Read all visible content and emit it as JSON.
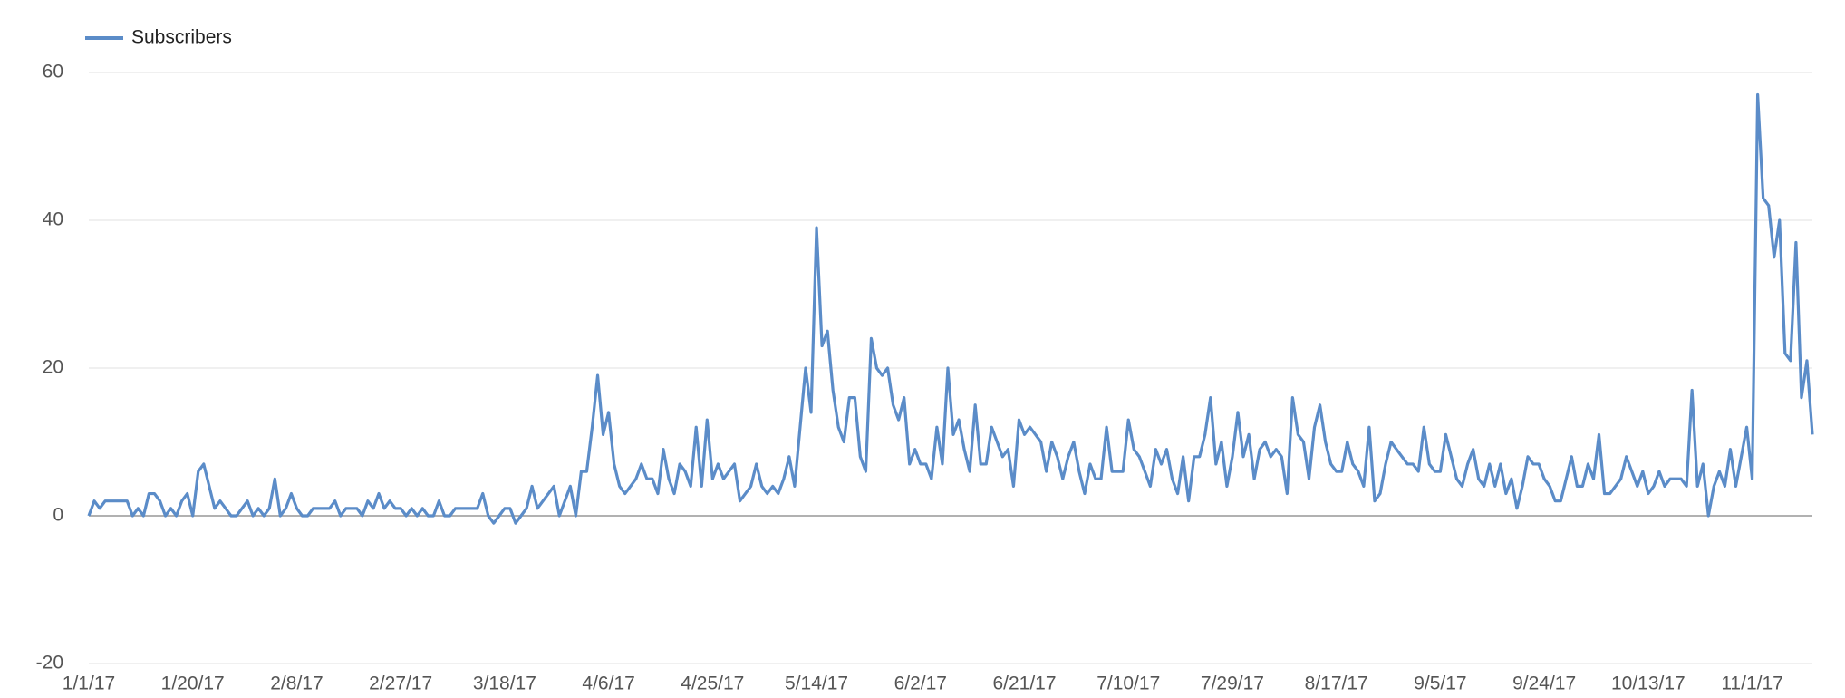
{
  "chart_data": {
    "type": "line",
    "categories": [
      "1/1/17",
      null,
      null,
      null,
      null,
      null,
      null,
      null,
      null,
      null,
      null,
      null,
      null,
      null,
      null,
      null,
      null,
      null,
      null,
      "1/20/17",
      null,
      null,
      null,
      null,
      null,
      null,
      null,
      null,
      null,
      null,
      null,
      null,
      null,
      null,
      null,
      null,
      null,
      null,
      "2/8/17",
      null,
      null,
      null,
      null,
      null,
      null,
      null,
      null,
      null,
      null,
      null,
      null,
      null,
      null,
      null,
      null,
      null,
      null,
      "2/27/17",
      null,
      null,
      null,
      null,
      null,
      null,
      null,
      null,
      null,
      null,
      null,
      null,
      null,
      null,
      null,
      null,
      null,
      null,
      "3/18/17",
      null,
      null,
      null,
      null,
      null,
      null,
      null,
      null,
      null,
      null,
      null,
      null,
      null,
      null,
      null,
      null,
      null,
      null,
      "4/6/17",
      null,
      null,
      null,
      null,
      null,
      null,
      null,
      null,
      null,
      null,
      null,
      null,
      null,
      null,
      null,
      null,
      null,
      null,
      "4/25/17",
      null,
      null,
      null,
      null,
      null,
      null,
      null,
      null,
      null,
      null,
      null,
      null,
      null,
      null,
      null,
      null,
      null,
      null,
      "5/14/17",
      null,
      null,
      null,
      null,
      null,
      null,
      null,
      null,
      null,
      null,
      null,
      null,
      null,
      null,
      null,
      null,
      null,
      null,
      "6/2/17",
      null,
      null,
      null,
      null,
      null,
      null,
      null,
      null,
      null,
      null,
      null,
      null,
      null,
      null,
      null,
      null,
      null,
      null,
      "6/21/17",
      null,
      null,
      null,
      null,
      null,
      null,
      null,
      null,
      null,
      null,
      null,
      null,
      null,
      null,
      null,
      null,
      null,
      null,
      "7/10/17",
      null,
      null,
      null,
      null,
      null,
      null,
      null,
      null,
      null,
      null,
      null,
      null,
      null,
      null,
      null,
      null,
      null,
      null,
      "7/29/17",
      null,
      null,
      null,
      null,
      null,
      null,
      null,
      null,
      null,
      null,
      null,
      null,
      null,
      null,
      null,
      null,
      null,
      null,
      "8/17/17",
      null,
      null,
      null,
      null,
      null,
      null,
      null,
      null,
      null,
      null,
      null,
      null,
      null,
      null,
      null,
      null,
      null,
      null,
      "9/5/17",
      null,
      null,
      null,
      null,
      null,
      null,
      null,
      null,
      null,
      null,
      null,
      null,
      null,
      null,
      null,
      null,
      null,
      null,
      "9/24/17",
      null,
      null,
      null,
      null,
      null,
      null,
      null,
      null,
      null,
      null,
      null,
      null,
      null,
      null,
      null,
      null,
      null,
      null,
      "10/13/17",
      null,
      null,
      null,
      null,
      null,
      null,
      null,
      null,
      null,
      null,
      null,
      null,
      null,
      null,
      null,
      null,
      null,
      null,
      "11/1/17",
      null,
      null,
      null,
      null,
      null,
      null,
      null,
      null,
      null,
      null,
      null
    ],
    "series": [
      {
        "name": "Subscribers",
        "color": "#5b8cc8",
        "values": [
          0,
          2,
          1,
          2,
          2,
          2,
          2,
          2,
          0,
          1,
          0,
          3,
          3,
          2,
          0,
          1,
          0,
          2,
          3,
          0,
          6,
          7,
          4,
          1,
          2,
          1,
          0,
          0,
          1,
          2,
          0,
          1,
          0,
          1,
          5,
          0,
          1,
          3,
          1,
          0,
          0,
          1,
          1,
          1,
          1,
          2,
          0,
          1,
          1,
          1,
          0,
          2,
          1,
          3,
          1,
          2,
          1,
          1,
          0,
          1,
          0,
          1,
          0,
          0,
          2,
          0,
          0,
          1,
          1,
          1,
          1,
          1,
          3,
          0,
          -1,
          0,
          1,
          1,
          -1,
          0,
          1,
          4,
          1,
          2,
          3,
          4,
          0,
          2,
          4,
          0,
          6,
          6,
          12,
          19,
          11,
          14,
          7,
          4,
          3,
          4,
          5,
          7,
          5,
          5,
          3,
          9,
          5,
          3,
          7,
          6,
          4,
          12,
          4,
          13,
          5,
          7,
          5,
          6,
          7,
          2,
          3,
          4,
          7,
          4,
          3,
          4,
          3,
          5,
          8,
          4,
          12,
          20,
          14,
          39,
          23,
          25,
          17,
          12,
          10,
          16,
          16,
          8,
          6,
          24,
          20,
          19,
          20,
          15,
          13,
          16,
          7,
          9,
          7,
          7,
          5,
          12,
          7,
          20,
          11,
          13,
          9,
          6,
          15,
          7,
          7,
          12,
          10,
          8,
          9,
          4,
          13,
          11,
          12,
          11,
          10,
          6,
          10,
          8,
          5,
          8,
          10,
          6,
          3,
          7,
          5,
          5,
          12,
          6,
          6,
          6,
          13,
          9,
          8,
          6,
          4,
          9,
          7,
          9,
          5,
          3,
          8,
          2,
          8,
          8,
          11,
          16,
          7,
          10,
          4,
          8,
          14,
          8,
          11,
          5,
          9,
          10,
          8,
          9,
          8,
          3,
          16,
          11,
          10,
          5,
          12,
          15,
          10,
          7,
          6,
          6,
          10,
          7,
          6,
          4,
          12,
          2,
          3,
          7,
          10,
          9,
          8,
          7,
          7,
          6,
          12,
          7,
          6,
          6,
          11,
          8,
          5,
          4,
          7,
          9,
          5,
          4,
          7,
          4,
          7,
          3,
          5,
          1,
          4,
          8,
          7,
          7,
          5,
          4,
          2,
          2,
          5,
          8,
          4,
          4,
          7,
          5,
          11,
          3,
          3,
          4,
          5,
          8,
          6,
          4,
          6,
          3,
          4,
          6,
          4,
          5,
          5,
          5,
          4,
          17,
          4,
          7,
          0,
          4,
          6,
          4,
          9,
          4,
          8,
          12,
          5,
          57,
          43,
          42,
          35,
          40,
          22,
          21,
          37,
          16,
          21,
          11
        ]
      }
    ],
    "ylim": [
      -20,
      60
    ],
    "yticks": [
      -20,
      0,
      20,
      40,
      60
    ],
    "grid": true,
    "legend": "top-left"
  }
}
